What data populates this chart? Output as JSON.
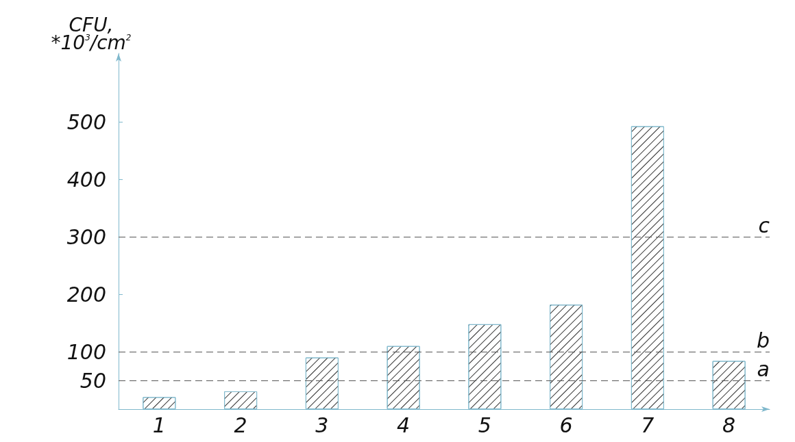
{
  "chart_data": {
    "type": "bar",
    "ylabel": "CFU,\n*10$^{3}$/cm$^{2}$",
    "categories": [
      "1",
      "2",
      "3",
      "4",
      "5",
      "6",
      "7",
      "8"
    ],
    "values": [
      21,
      31,
      90,
      110,
      148,
      182,
      493,
      84
    ],
    "color": "#7fb8cc",
    "ylim": [
      0,
      620
    ],
    "yticks": [
      50,
      100,
      200,
      300,
      400,
      500
    ],
    "ref_lines": [
      {
        "axis": "y",
        "value": 50,
        "label": "a",
        "color": "#555555",
        "line_style": "dashed"
      },
      {
        "axis": "y",
        "value": 100,
        "label": "b",
        "color": "#555555",
        "line_style": "dashed"
      },
      {
        "axis": "y",
        "value": 300,
        "label": "c",
        "color": "#555555",
        "line_style": "dashed"
      }
    ],
    "grid": false
  }
}
